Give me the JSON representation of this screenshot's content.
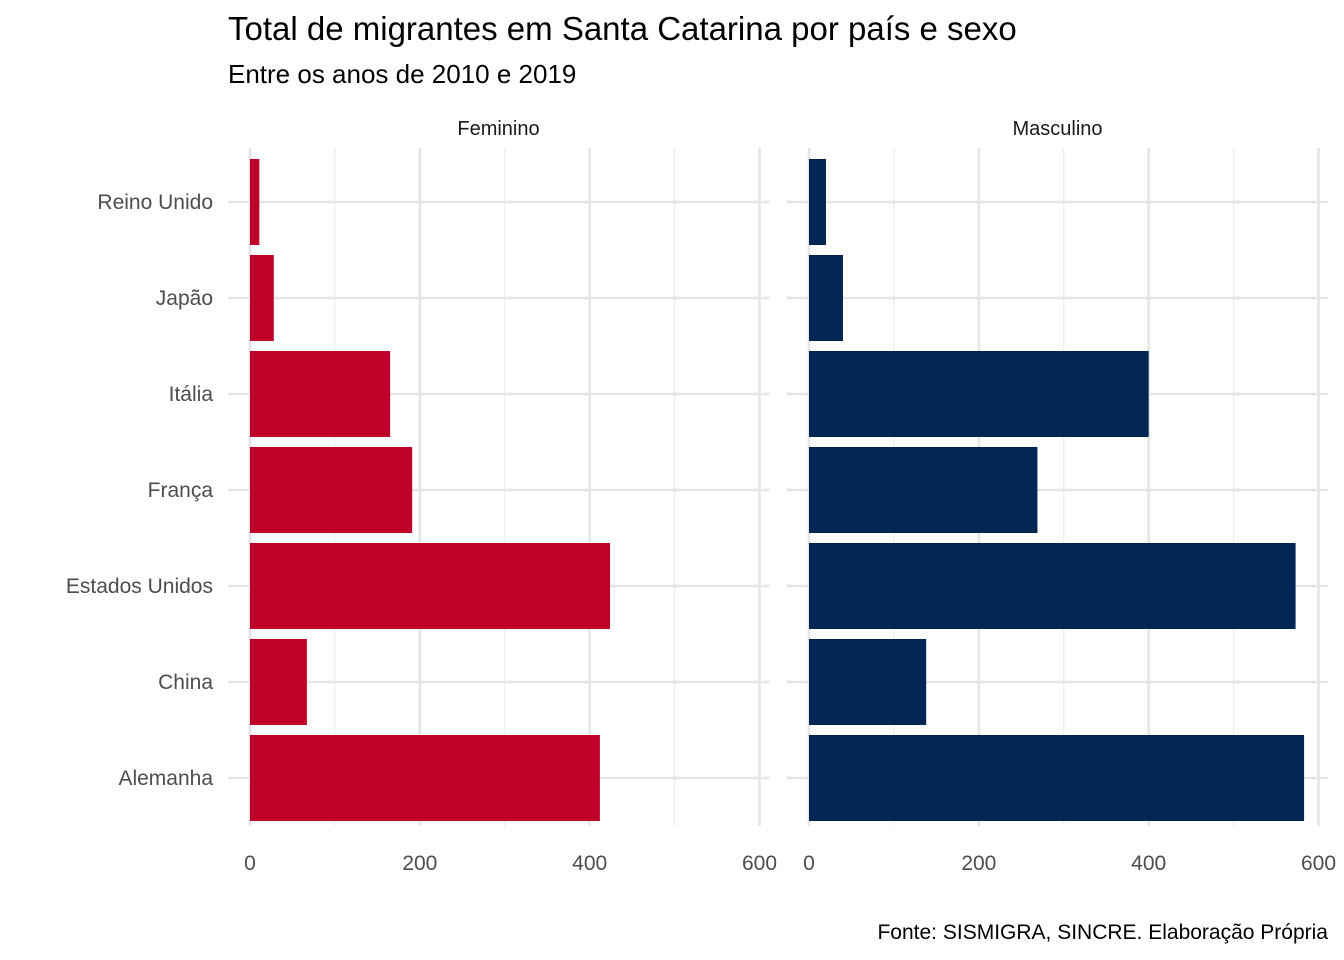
{
  "chart_data": {
    "type": "bar",
    "orientation": "horizontal",
    "title": "Total de migrantes em Santa Catarina por país e sexo",
    "subtitle": "Entre os anos de 2010 e 2019",
    "caption": "Fonte: SISMIGRA, SINCRE. Elaboração Própria",
    "categories": [
      "Alemanha",
      "China",
      "Estados Unidos",
      "França",
      "Itália",
      "Japão",
      "Reino Unido"
    ],
    "facets": [
      {
        "label": "Feminino",
        "color": "#BF0029",
        "values": [
          412,
          67,
          424,
          191,
          165,
          28,
          11
        ]
      },
      {
        "label": "Masculino",
        "color": "#022654",
        "values": [
          583,
          138,
          573,
          269,
          400,
          40,
          20
        ]
      }
    ],
    "xlim": [
      0,
      600
    ],
    "x_ticks": [
      "0",
      "200",
      "400",
      "600"
    ],
    "x_tick_values": [
      0,
      200,
      400,
      600
    ],
    "grid": true,
    "legend": "none"
  }
}
